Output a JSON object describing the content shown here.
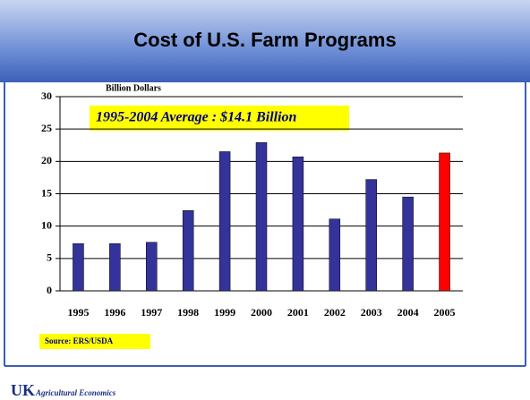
{
  "chart_data": {
    "type": "bar",
    "title": "Cost of U.S. Farm Programs",
    "y_axis_label": "Billion Dollars",
    "annotation": "1995-2004 Average : $14.1 Billion",
    "source": "Source:  ERS/USDA",
    "categories": [
      "1995",
      "1996",
      "1997",
      "1998",
      "1999",
      "2000",
      "2001",
      "2002",
      "2003",
      "2004",
      "2005"
    ],
    "values": [
      7.3,
      7.3,
      7.5,
      12.4,
      21.5,
      22.9,
      20.7,
      11.1,
      17.2,
      14.5,
      21.3
    ],
    "colors": [
      "#333399",
      "#333399",
      "#333399",
      "#333399",
      "#333399",
      "#333399",
      "#333399",
      "#333399",
      "#333399",
      "#333399",
      "#ff0000"
    ],
    "ylim": [
      0,
      30
    ],
    "yticks": [
      0,
      5,
      10,
      15,
      20,
      25,
      30
    ],
    "grid": true
  },
  "footer": {
    "logo": "UK",
    "text": "Agricultural Economics"
  }
}
